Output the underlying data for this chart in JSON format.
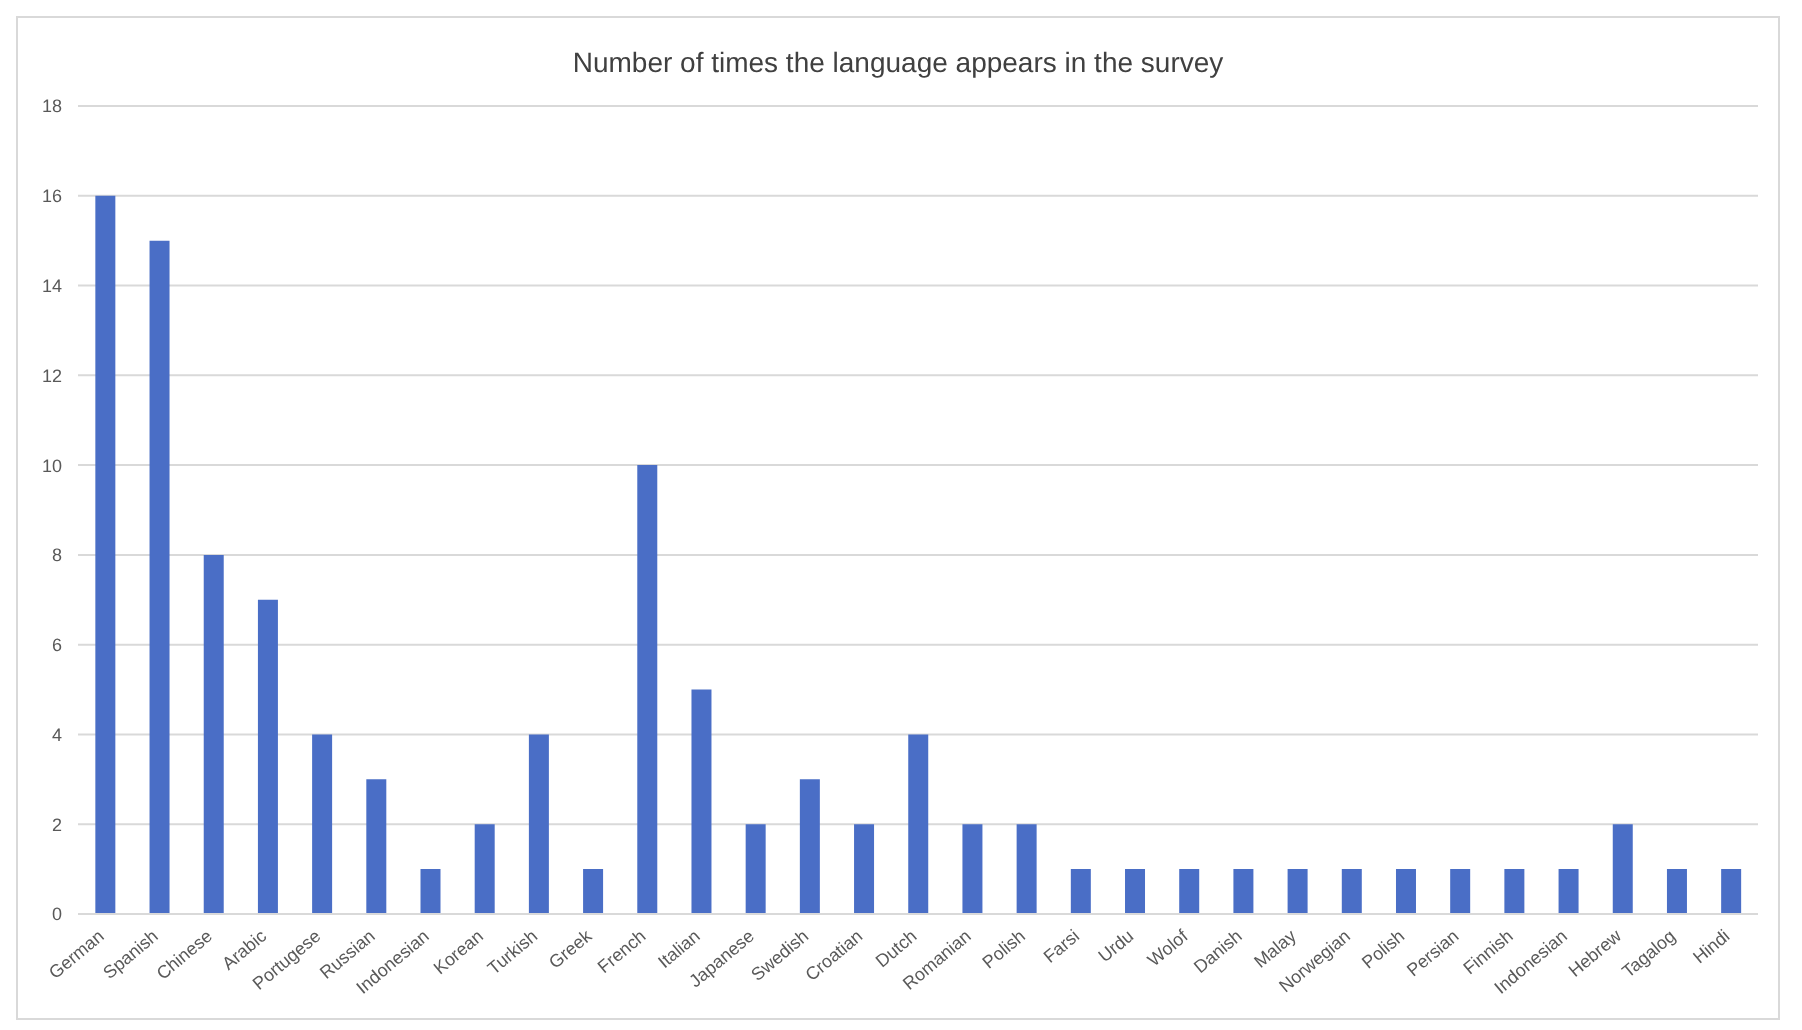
{
  "chart_data": {
    "type": "bar",
    "title": "Number of times the language appears in the survey",
    "categories": [
      "German",
      "Spanish",
      "Chinese",
      "Arabic",
      "Portugese",
      "Russian",
      "Indonesian",
      "Korean",
      "Turkish",
      "Greek",
      "French",
      "Italian",
      "Japanese",
      "Swedish",
      "Croatian",
      "Dutch",
      "Romanian",
      "Polish",
      "Farsi",
      "Urdu",
      "Wolof",
      "Danish",
      "Malay",
      "Norwegian",
      "Polish",
      "Persian",
      "Finnish",
      "Indonesian",
      "Hebrew",
      "Tagalog",
      "Hindi"
    ],
    "values": [
      16,
      15,
      8,
      7,
      4,
      3,
      1,
      2,
      4,
      1,
      10,
      5,
      2,
      3,
      2,
      4,
      2,
      2,
      1,
      1,
      1,
      1,
      1,
      1,
      1,
      1,
      1,
      1,
      2,
      1,
      1
    ],
    "color": "#4a6ec6",
    "ylim": [
      0,
      18
    ],
    "yticks": [
      0,
      2,
      4,
      6,
      8,
      10,
      12,
      14,
      16,
      18
    ],
    "grid": "y"
  }
}
